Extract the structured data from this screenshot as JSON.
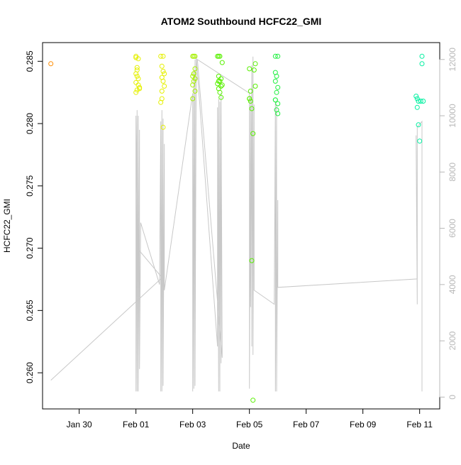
{
  "chart_data": {
    "type": "scatter",
    "title": "ATOM2 Southbound HCFC22_GMI",
    "xlabel": "Date",
    "ylabel": "HCFC22_GMI",
    "xlim": [
      "2017-01-28T17:00",
      "2017-02-11T17:00"
    ],
    "ylim": [
      0.2571,
      0.2865
    ],
    "y2lim": [
      -420,
      12600
    ],
    "x_ticks": [
      {
        "date": "2017-01-30",
        "label": "Jan 30"
      },
      {
        "date": "2017-02-01",
        "label": "Feb 01"
      },
      {
        "date": "2017-02-03",
        "label": "Feb 03"
      },
      {
        "date": "2017-02-05",
        "label": "Feb 05"
      },
      {
        "date": "2017-02-07",
        "label": "Feb 07"
      },
      {
        "date": "2017-02-09",
        "label": "Feb 09"
      },
      {
        "date": "2017-02-11",
        "label": "Feb 11"
      }
    ],
    "y_ticks": [
      {
        "value": 0.26,
        "label": "0.260"
      },
      {
        "value": 0.265,
        "label": "0.265"
      },
      {
        "value": 0.27,
        "label": "0.270"
      },
      {
        "value": 0.275,
        "label": "0.275"
      },
      {
        "value": 0.28,
        "label": "0.280"
      },
      {
        "value": 0.285,
        "label": "0.285"
      }
    ],
    "y2_ticks": [
      {
        "value": 0,
        "label": "0"
      },
      {
        "value": 2000,
        "label": "2000"
      },
      {
        "value": 4000,
        "label": "4000"
      },
      {
        "value": 6000,
        "label": "6000"
      },
      {
        "value": 8000,
        "label": "8000"
      },
      {
        "value": 10000,
        "label": "10000"
      },
      {
        "value": 12000,
        "label": "12000"
      }
    ],
    "grid": false,
    "line_color": "#c8c8c8",
    "marker": "open-circle",
    "series": [
      {
        "color": "#ff8c00",
        "points": [
          [
            "2017-01-29T00:00",
            0.2848
          ]
        ]
      },
      {
        "color": "#e5f000",
        "points": [
          [
            "2017-02-01T00:00",
            0.2854
          ],
          [
            "2017-02-01T00:00",
            0.2853
          ],
          [
            "2017-02-01T02:00",
            0.2852
          ],
          [
            "2017-02-01T01:00",
            0.2845
          ],
          [
            "2017-02-01T01:00",
            0.2843
          ],
          [
            "2017-02-01T00:00",
            0.284
          ],
          [
            "2017-02-01T01:00",
            0.2838
          ],
          [
            "2017-02-01T02:00",
            0.2836
          ],
          [
            "2017-02-01T00:00",
            0.2833
          ],
          [
            "2017-02-01T02:00",
            0.2831
          ],
          [
            "2017-02-01T03:00",
            0.2829
          ],
          [
            "2017-02-01T01:00",
            0.2827
          ],
          [
            "2017-02-01T00:00",
            0.2825
          ],
          [
            "2017-02-01T03:00",
            0.2828
          ],
          [
            "2017-02-01T21:00",
            0.2854
          ],
          [
            "2017-02-01T23:00",
            0.2854
          ],
          [
            "2017-02-01T22:00",
            0.2846
          ],
          [
            "2017-02-01T23:00",
            0.2842
          ],
          [
            "2017-02-02T00:00",
            0.284
          ],
          [
            "2017-02-01T22:00",
            0.2837
          ],
          [
            "2017-02-01T23:00",
            0.2834
          ],
          [
            "2017-02-02T00:00",
            0.283
          ],
          [
            "2017-02-01T22:00",
            0.2826
          ],
          [
            "2017-02-01T22:00",
            0.282
          ],
          [
            "2017-02-01T21:00",
            0.2817
          ],
          [
            "2017-02-01T23:00",
            0.2797
          ]
        ]
      },
      {
        "color": "#a6f000",
        "points": [
          [
            "2017-02-03T00:00",
            0.2854
          ],
          [
            "2017-02-03T01:00",
            0.2854
          ],
          [
            "2017-02-03T02:00",
            0.2854
          ],
          [
            "2017-02-03T02:00",
            0.2844
          ],
          [
            "2017-02-03T01:00",
            0.284
          ],
          [
            "2017-02-03T00:00",
            0.2838
          ],
          [
            "2017-02-03T02:00",
            0.2836
          ],
          [
            "2017-02-03T01:00",
            0.2834
          ],
          [
            "2017-02-03T00:00",
            0.2831
          ],
          [
            "2017-02-03T02:00",
            0.2826
          ],
          [
            "2017-02-03T00:00",
            0.282
          ],
          [
            "2017-02-03T01:00",
            0.284
          ]
        ]
      },
      {
        "color": "#58f000",
        "points": [
          [
            "2017-02-03T21:00",
            0.2854
          ],
          [
            "2017-02-03T22:00",
            0.2854
          ],
          [
            "2017-02-03T23:00",
            0.2854
          ],
          [
            "2017-02-03T22:00",
            0.2838
          ],
          [
            "2017-02-04T00:00",
            0.2836
          ],
          [
            "2017-02-03T23:00",
            0.2834
          ],
          [
            "2017-02-03T21:00",
            0.2832
          ],
          [
            "2017-02-04T00:00",
            0.283
          ],
          [
            "2017-02-03T22:00",
            0.2828
          ],
          [
            "2017-02-04T01:00",
            0.2849
          ],
          [
            "2017-02-03T23:00",
            0.2825
          ],
          [
            "2017-02-04T00:00",
            0.2821
          ],
          [
            "2017-02-03T22:00",
            0.2834
          ],
          [
            "2017-02-04T01:00",
            0.2831
          ],
          [
            "2017-02-05T00:00",
            0.2844
          ],
          [
            "2017-02-05T01:00",
            0.2826
          ],
          [
            "2017-02-05T00:00",
            0.282
          ],
          [
            "2017-02-05T01:00",
            0.2818
          ],
          [
            "2017-02-05T02:00",
            0.2812
          ],
          [
            "2017-02-05T03:00",
            0.2792
          ],
          [
            "2017-02-05T02:00",
            0.269
          ],
          [
            "2017-02-05T05:00",
            0.2848
          ],
          [
            "2017-02-05T04:00",
            0.2843
          ],
          [
            "2017-02-05T05:00",
            0.283
          ],
          [
            "2017-02-05T03:00",
            0.2578
          ],
          [
            "2017-02-05T00:00",
            0.282
          ]
        ]
      },
      {
        "color": "#20f040",
        "points": [
          [
            "2017-02-05T22:00",
            0.2854
          ],
          [
            "2017-02-06T00:00",
            0.2854
          ],
          [
            "2017-02-05T22:00",
            0.2841
          ],
          [
            "2017-02-05T23:00",
            0.2838
          ],
          [
            "2017-02-05T22:00",
            0.2834
          ],
          [
            "2017-02-06T00:00",
            0.2829
          ],
          [
            "2017-02-05T23:00",
            0.2825
          ],
          [
            "2017-02-05T22:00",
            0.2819
          ],
          [
            "2017-02-06T00:00",
            0.2816
          ],
          [
            "2017-02-05T23:00",
            0.2811
          ],
          [
            "2017-02-06T00:00",
            0.2808
          ],
          [
            "2017-02-05T22:00",
            0.2819
          ]
        ]
      },
      {
        "color": "#00f0a0",
        "points": [
          [
            "2017-02-11T02:00",
            0.2854
          ],
          [
            "2017-02-11T02:00",
            0.2848
          ],
          [
            "2017-02-10T21:00",
            0.2822
          ],
          [
            "2017-02-10T23:00",
            0.2818
          ],
          [
            "2017-02-11T01:00",
            0.2818
          ],
          [
            "2017-02-10T22:00",
            0.282
          ],
          [
            "2017-02-11T03:00",
            0.2818
          ],
          [
            "2017-02-10T22:00",
            0.2813
          ],
          [
            "2017-02-10T23:00",
            0.2799
          ],
          [
            "2017-02-11T00:00",
            0.2786
          ]
        ]
      }
    ],
    "altitude_series": {
      "axis": "right",
      "values": [
        [
          "2017-01-29T00:00",
          600
        ],
        [
          "2017-02-01T21:00",
          4200
        ],
        [
          "2017-02-02T00:00",
          3800
        ],
        [
          "2017-02-01T21:00",
          4300
        ],
        [
          "2017-02-01T03:00",
          5200
        ],
        [
          "2017-02-01T01:00",
          6000
        ],
        [
          "2017-02-01T00:00",
          10000
        ],
        [
          "2017-02-01T00:00",
          200
        ],
        [
          "2017-02-01T01:00",
          10200
        ],
        [
          "2017-02-01T01:00",
          200
        ],
        [
          "2017-02-01T02:00",
          10000
        ],
        [
          "2017-02-01T02:00",
          200
        ],
        [
          "2017-02-01T03:00",
          9500
        ],
        [
          "2017-02-01T03:00",
          1000
        ],
        [
          "2017-02-01T04:00",
          6200
        ],
        [
          "2017-02-01T04:00",
          6200
        ],
        [
          "2017-02-01T20:00",
          4000
        ],
        [
          "2017-02-01T21:00",
          9800
        ],
        [
          "2017-02-01T21:00",
          200
        ],
        [
          "2017-02-01T22:00",
          10200
        ],
        [
          "2017-02-01T22:00",
          200
        ],
        [
          "2017-02-01T23:00",
          9900
        ],
        [
          "2017-02-01T23:00",
          400
        ],
        [
          "2017-02-02T00:00",
          9000
        ],
        [
          "2017-02-02T00:00",
          3800
        ],
        [
          "2017-02-03T00:00",
          10800
        ],
        [
          "2017-02-03T00:00",
          200
        ],
        [
          "2017-02-03T01:00",
          11600
        ],
        [
          "2017-02-03T01:00",
          300
        ],
        [
          "2017-02-03T02:00",
          12000
        ],
        [
          "2017-02-03T02:00",
          400
        ],
        [
          "2017-02-03T03:00",
          12100
        ],
        [
          "2017-02-03T21:00",
          1800
        ],
        [
          "2017-02-03T21:00",
          10300
        ],
        [
          "2017-02-03T22:00",
          200
        ],
        [
          "2017-02-03T22:00",
          10600
        ],
        [
          "2017-02-03T23:00",
          200
        ],
        [
          "2017-02-03T23:00",
          10500
        ],
        [
          "2017-02-04T00:00",
          1200
        ],
        [
          "2017-02-04T00:00",
          10800
        ],
        [
          "2017-02-04T01:00",
          1400
        ],
        [
          "2017-02-03T04:00",
          12000
        ],
        [
          "2017-02-05T00:00",
          10800
        ],
        [
          "2017-02-05T00:00",
          300
        ],
        [
          "2017-02-05T01:00",
          10700
        ],
        [
          "2017-02-05T01:00",
          3200
        ],
        [
          "2017-02-05T02:00",
          11800
        ],
        [
          "2017-02-05T02:00",
          1800
        ],
        [
          "2017-02-05T03:00",
          12100
        ],
        [
          "2017-02-05T03:00",
          1500
        ],
        [
          "2017-02-05T04:00",
          10400
        ],
        [
          "2017-02-05T04:00",
          3800
        ],
        [
          "2017-02-05T21:00",
          3300
        ],
        [
          "2017-02-05T22:00",
          10500
        ],
        [
          "2017-02-05T22:00",
          200
        ],
        [
          "2017-02-05T23:00",
          10400
        ],
        [
          "2017-02-05T23:00",
          200
        ],
        [
          "2017-02-06T00:00",
          7000
        ],
        [
          "2017-02-06T00:00",
          3900
        ],
        [
          "2017-02-10T22:00",
          4200
        ],
        [
          "2017-02-10T21:00",
          9300
        ],
        [
          "2017-02-10T22:00",
          3300
        ],
        [
          "2017-02-10T22:00",
          9600
        ],
        [
          "2017-02-11T02:00",
          9800
        ],
        [
          "2017-02-11T02:00",
          200
        ]
      ]
    }
  }
}
